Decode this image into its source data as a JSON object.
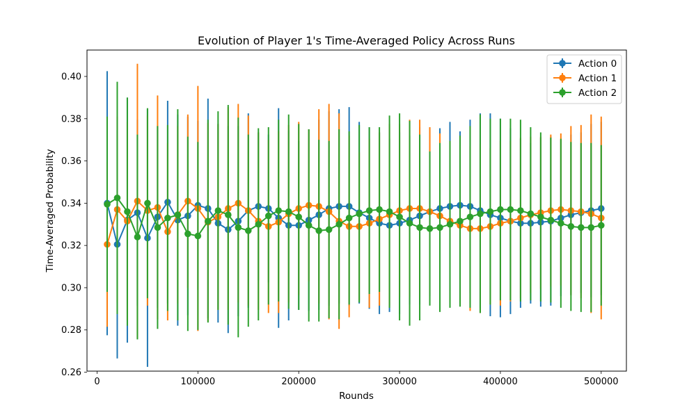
{
  "chart_data": {
    "type": "line",
    "title": "Evolution of Player 1's Time-Averaged Policy Across Runs",
    "xlabel": "Rounds",
    "ylabel": "Time-Averaged Probability",
    "xlim": [
      -10000,
      525000
    ],
    "ylim": [
      0.2605,
      0.4125
    ],
    "xticks": [
      0,
      100000,
      200000,
      300000,
      400000,
      500000
    ],
    "xtick_labels": [
      "0",
      "100000",
      "200000",
      "300000",
      "400000",
      "500000"
    ],
    "yticks": [
      0.26,
      0.28,
      0.3,
      0.32,
      0.34,
      0.36,
      0.38,
      0.4
    ],
    "ytick_labels": [
      "0.26",
      "0.28",
      "0.30",
      "0.32",
      "0.34",
      "0.36",
      "0.38",
      "0.40"
    ],
    "grid": false,
    "legend_position": "top-right",
    "x": [
      10000,
      20000,
      30000,
      40000,
      50000,
      60000,
      70000,
      80000,
      90000,
      100000,
      110000,
      120000,
      130000,
      140000,
      150000,
      160000,
      170000,
      180000,
      190000,
      200000,
      210000,
      220000,
      230000,
      240000,
      250000,
      260000,
      270000,
      280000,
      290000,
      300000,
      310000,
      320000,
      330000,
      340000,
      350000,
      360000,
      370000,
      380000,
      390000,
      400000,
      410000,
      420000,
      430000,
      440000,
      450000,
      460000,
      470000,
      480000,
      490000,
      500000
    ],
    "series": [
      {
        "name": "Action 0",
        "color": "#1f77b4",
        "values": [
          0.34,
          0.3205,
          0.332,
          0.3355,
          0.3235,
          0.3335,
          0.3405,
          0.332,
          0.334,
          0.339,
          0.3375,
          0.3305,
          0.3275,
          0.3315,
          0.3365,
          0.3385,
          0.3375,
          0.333,
          0.3295,
          0.3295,
          0.332,
          0.3345,
          0.3375,
          0.3385,
          0.3385,
          0.3355,
          0.333,
          0.3305,
          0.3295,
          0.3305,
          0.332,
          0.334,
          0.336,
          0.3375,
          0.3385,
          0.339,
          0.3385,
          0.3365,
          0.3345,
          0.333,
          0.3315,
          0.3305,
          0.3305,
          0.331,
          0.3315,
          0.333,
          0.3345,
          0.3355,
          0.3365,
          0.3375
        ],
        "errors": [
          0.0625,
          0.054,
          0.058,
          0.044,
          0.061,
          0.043,
          0.048,
          0.05,
          0.047,
          0.04,
          0.052,
          0.047,
          0.049,
          0.045,
          0.046,
          0.035,
          0.035,
          0.052,
          0.045,
          0.04,
          0.043,
          0.045,
          0.046,
          0.046,
          0.047,
          0.043,
          0.043,
          0.043,
          0.041,
          0.043,
          0.04,
          0.042,
          0.04,
          0.038,
          0.04,
          0.035,
          0.041,
          0.046,
          0.048,
          0.047,
          0.044,
          0.04,
          0.038,
          0.04,
          0.04,
          0.037,
          0.038,
          0.038,
          0.041,
          0.041
        ]
      },
      {
        "name": "Action 1",
        "color": "#ff7f0e",
        "values": [
          0.3205,
          0.337,
          0.3315,
          0.341,
          0.3365,
          0.338,
          0.3265,
          0.3345,
          0.341,
          0.3375,
          0.331,
          0.3335,
          0.3375,
          0.34,
          0.3365,
          0.3315,
          0.329,
          0.331,
          0.335,
          0.3375,
          0.339,
          0.3385,
          0.336,
          0.3315,
          0.329,
          0.329,
          0.3305,
          0.3325,
          0.3345,
          0.3365,
          0.3375,
          0.3375,
          0.336,
          0.334,
          0.3315,
          0.3295,
          0.328,
          0.328,
          0.329,
          0.3305,
          0.3315,
          0.333,
          0.3345,
          0.3355,
          0.3365,
          0.337,
          0.3365,
          0.336,
          0.335,
          0.333
        ],
        "errors": [
          0.039,
          0.044,
          0.047,
          0.065,
          0.045,
          0.053,
          0.042,
          0.042,
          0.041,
          0.058,
          0.047,
          0.044,
          0.048,
          0.047,
          0.045,
          0.042,
          0.041,
          0.043,
          0.042,
          0.041,
          0.036,
          0.046,
          0.051,
          0.051,
          0.043,
          0.035,
          0.04,
          0.041,
          0.043,
          0.041,
          0.042,
          0.042,
          0.04,
          0.039,
          0.038,
          0.038,
          0.039,
          0.04,
          0.037,
          0.039,
          0.038,
          0.038,
          0.037,
          0.036,
          0.036,
          0.036,
          0.04,
          0.041,
          0.047,
          0.048
        ]
      },
      {
        "name": "Action 2",
        "color": "#2ca02c",
        "values": [
          0.3395,
          0.3425,
          0.336,
          0.324,
          0.34,
          0.3285,
          0.333,
          0.3345,
          0.3255,
          0.3245,
          0.3315,
          0.3365,
          0.3345,
          0.3285,
          0.327,
          0.33,
          0.334,
          0.3365,
          0.336,
          0.3335,
          0.3295,
          0.327,
          0.3275,
          0.33,
          0.333,
          0.335,
          0.3365,
          0.337,
          0.336,
          0.3335,
          0.3305,
          0.3285,
          0.328,
          0.3285,
          0.33,
          0.3315,
          0.3335,
          0.335,
          0.336,
          0.337,
          0.337,
          0.3365,
          0.335,
          0.3335,
          0.332,
          0.3305,
          0.329,
          0.3285,
          0.3285,
          0.3295
        ],
        "errors": [
          0.0415,
          0.055,
          0.054,
          0.0485,
          0.045,
          0.048,
          0.044,
          0.05,
          0.046,
          0.0445,
          0.048,
          0.047,
          0.052,
          0.052,
          0.0455,
          0.0455,
          0.042,
          0.043,
          0.046,
          0.044,
          0.0455,
          0.043,
          0.042,
          0.045,
          0.041,
          0.042,
          0.0395,
          0.039,
          0.0455,
          0.049,
          0.0485,
          0.044,
          0.0365,
          0.04,
          0.0395,
          0.0405,
          0.043,
          0.047,
          0.044,
          0.043,
          0.043,
          0.043,
          0.041,
          0.04,
          0.039,
          0.04,
          0.04,
          0.04,
          0.04,
          0.038
        ]
      }
    ]
  }
}
